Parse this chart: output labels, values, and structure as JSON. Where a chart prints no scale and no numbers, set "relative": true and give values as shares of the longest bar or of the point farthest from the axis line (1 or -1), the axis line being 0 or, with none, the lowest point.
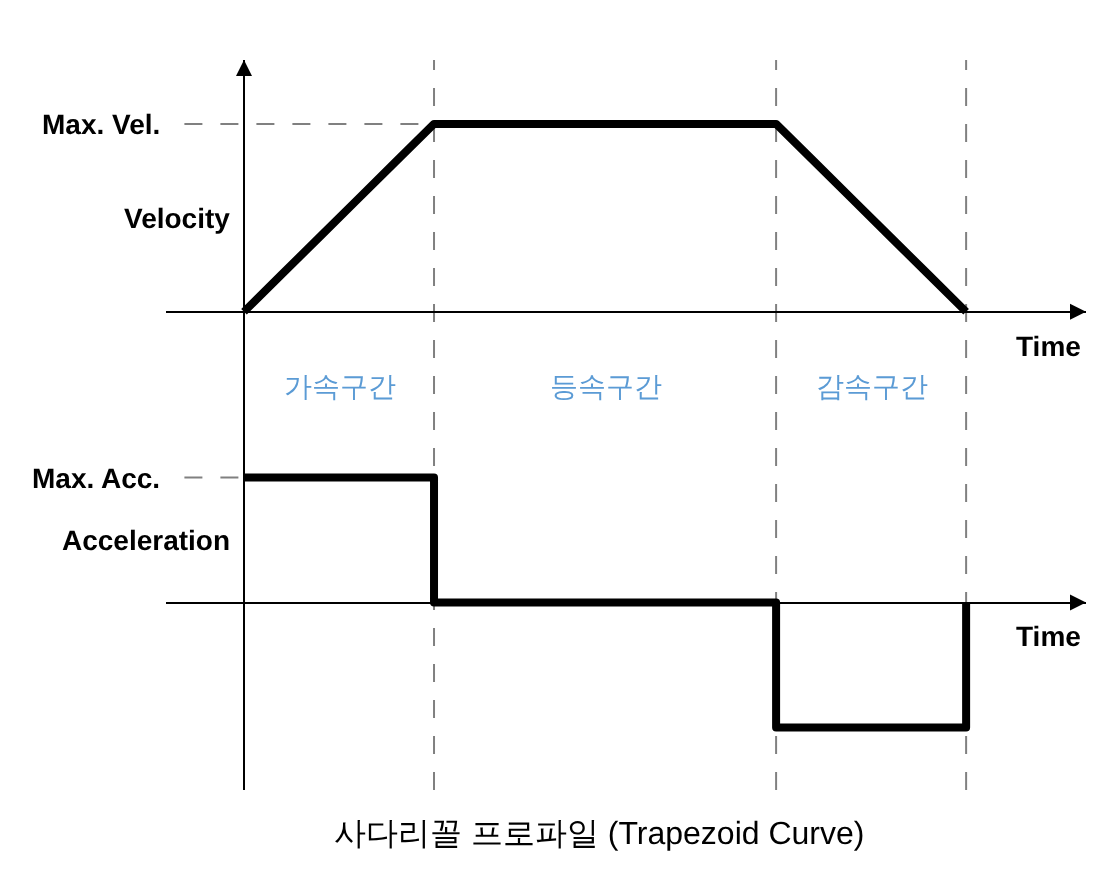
{
  "chart_data": [
    {
      "type": "line",
      "xlabel": "Time",
      "ylabel": "Velocity",
      "relative": true,
      "categories": [
        null,
        null,
        null,
        null,
        null,
        null,
        null,
        null,
        null,
        null,
        null,
        null,
        null,
        null,
        null,
        null,
        null,
        null,
        null,
        null
      ],
      "values": [
        0,
        0.2,
        0.4,
        0.6,
        0.8,
        1,
        1,
        1,
        1,
        1,
        1,
        1,
        1,
        1,
        1,
        0.8,
        0.6,
        0.4,
        0.2,
        0
      ],
      "color": "#000000",
      "marker": "none",
      "line_style": "solid",
      "grid": "x",
      "ref_lines": [
        {
          "axis": "y",
          "value": 1,
          "label": "Max. Vel.",
          "color": "#808080",
          "line_style": "dashed"
        }
      ],
      "annotations": [
        "가속구간",
        "등속구간",
        "감속구간"
      ]
    },
    {
      "type": "step",
      "xlabel": "Time",
      "ylabel": "Acceleration",
      "relative": true,
      "categories": [
        null,
        null,
        null,
        null,
        null,
        null,
        null,
        null,
        null,
        null,
        null,
        null,
        null,
        null,
        null,
        null,
        null,
        null,
        null,
        null
      ],
      "values": [
        1,
        1,
        1,
        1,
        1,
        0,
        0,
        0,
        0,
        0,
        0,
        0,
        0,
        0,
        -1,
        -1,
        -1,
        -1,
        -1,
        0
      ],
      "color": "#000000",
      "marker": "none",
      "line_style": "solid",
      "grid": "x",
      "ref_lines": [
        {
          "axis": "y",
          "value": 1,
          "label": "Max. Acc.",
          "color": "#808080",
          "line_style": "dashed"
        }
      ],
      "annotations": [
        "사다리꼴 프로파일 (Trapezoid Curve)"
      ]
    }
  ]
}
